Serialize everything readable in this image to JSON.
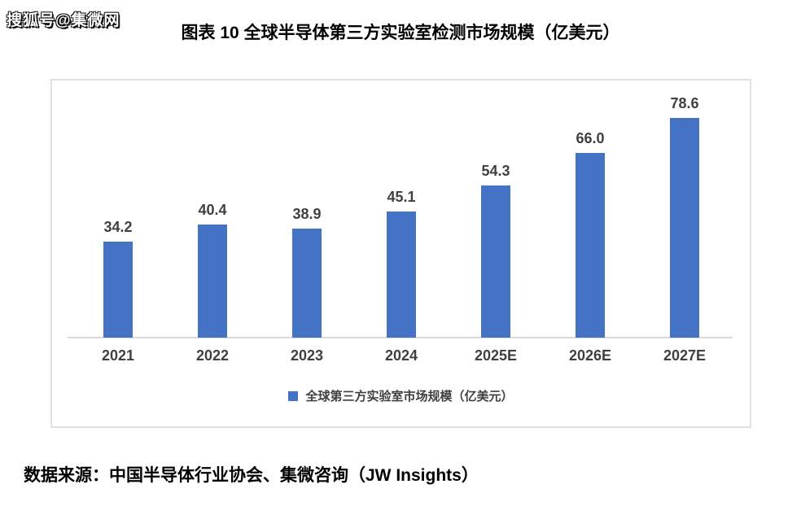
{
  "watermark": {
    "text": "搜狐号@集微网"
  },
  "header": {
    "title": "图表 10  全球半导体第三方实验室检测市场规模（亿美元）"
  },
  "chart_data": {
    "type": "bar",
    "title": "图表 10  全球半导体第三方实验室检测市场规模（亿美元）",
    "categories": [
      "2021",
      "2022",
      "2023",
      "2024",
      "2025E",
      "2026E",
      "2027E"
    ],
    "values": [
      34.2,
      40.4,
      38.9,
      45.1,
      54.3,
      66.0,
      78.6
    ],
    "value_labels": [
      "34.2",
      "40.4",
      "38.9",
      "45.1",
      "54.3",
      "66.0",
      "78.6"
    ],
    "legend": "全球第三方实验室市场规模（亿美元）",
    "legend_position": "bottom",
    "bar_color": "#4472C4",
    "axis_color": "#d9d9d9",
    "label_color": "#404040",
    "xlabel": "",
    "ylabel": "",
    "ylim": [
      0,
      90
    ],
    "grid": false
  },
  "footer": {
    "source": "数据来源：中国半导体行业协会、集微咨询（JW Insights）"
  }
}
